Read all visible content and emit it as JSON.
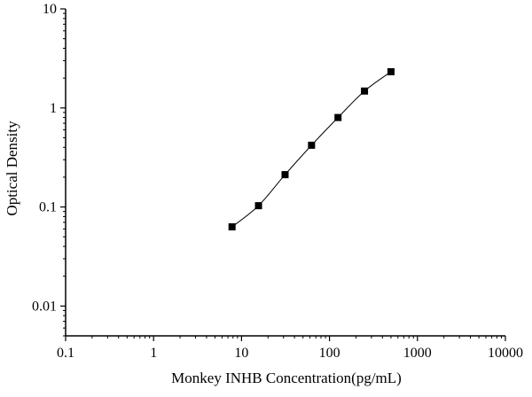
{
  "chart_data": {
    "type": "scatter",
    "title": "",
    "xlabel": "Monkey INHB Concentration(pg/mL)",
    "ylabel": "Optical Density",
    "xscale": "log",
    "yscale": "log",
    "xlim": [
      0.1,
      10000
    ],
    "ylim": [
      0.005,
      10
    ],
    "grid": false,
    "x_ticks": [
      "0.1",
      "1",
      "10",
      "100",
      "1000",
      "10000"
    ],
    "y_ticks": [
      "0.01",
      "0.1",
      "1",
      "10"
    ],
    "series": [
      {
        "marker": "square",
        "line": "smooth",
        "color": "#000000",
        "x": [
          7.8,
          15.6,
          31.25,
          62.5,
          125,
          250,
          500
        ],
        "y": [
          0.063,
          0.103,
          0.212,
          0.42,
          0.8,
          1.48,
          2.32
        ]
      }
    ]
  }
}
